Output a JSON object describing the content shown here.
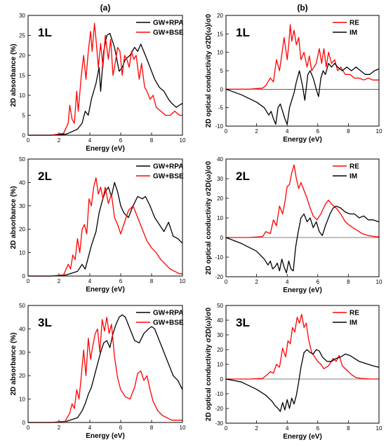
{
  "columns": [
    "(a)",
    "(b)"
  ],
  "colors": {
    "black": "#000000",
    "red": "#ff0000"
  },
  "chart_data": [
    {
      "type": "line",
      "panel_label": "1L",
      "xlabel": "Energy (eV)",
      "ylabel": "2D absorbance (%)",
      "xlim": [
        0,
        10
      ],
      "ylim": [
        0,
        30
      ],
      "xticks": [
        0,
        2,
        4,
        6,
        8,
        10
      ],
      "yticks": [
        0,
        5,
        10,
        15,
        20,
        25,
        30
      ],
      "legend": [
        "GW+RPA",
        "GW+BSE"
      ],
      "legend_position": "top-right",
      "series": [
        {
          "name": "GW+RPA",
          "color": "#000000",
          "x": [
            0,
            1.5,
            2.5,
            3.2,
            3.5,
            3.7,
            3.9,
            4.1,
            4.4,
            4.6,
            4.7,
            4.9,
            5.1,
            5.3,
            5.6,
            5.9,
            6.1,
            6.3,
            6.6,
            6.9,
            7.1,
            7.3,
            7.6,
            7.9,
            8.2,
            8.5,
            8.8,
            9.1,
            9.3,
            9.6,
            10
          ],
          "y": [
            0,
            0,
            0.3,
            1.5,
            3,
            6,
            5,
            9,
            13,
            17,
            11,
            21,
            25,
            25.5,
            22,
            16,
            17,
            19,
            20,
            22,
            21,
            22.8,
            20,
            17,
            14,
            12,
            11,
            9,
            8,
            7,
            8
          ]
        },
        {
          "name": "GW+BSE",
          "color": "#000000",
          "x": [
            0,
            1.5,
            2.3,
            2.6,
            2.7,
            2.85,
            3.0,
            3.15,
            3.25,
            3.45,
            3.6,
            3.75,
            3.9,
            4.05,
            4.15,
            4.3,
            4.4,
            4.55,
            4.7,
            4.85,
            5.0,
            5.2,
            5.35,
            5.5,
            5.6,
            5.8,
            5.95,
            6.1,
            6.25,
            6.4,
            6.55,
            6.7,
            6.85,
            7.0,
            7.2,
            7.35,
            7.55,
            7.7,
            7.9,
            8.1,
            8.3,
            8.6,
            8.9,
            9.2,
            9.5,
            9.8,
            10
          ],
          "y": [
            0,
            0,
            0.5,
            3,
            7.5,
            4,
            3,
            11,
            6,
            15,
            20,
            14,
            21,
            26,
            21,
            28,
            24,
            17,
            23,
            17,
            25,
            19,
            24,
            15,
            17,
            22,
            21,
            15,
            20,
            19,
            17,
            21,
            19,
            20,
            14,
            18,
            12,
            11,
            9,
            10,
            7,
            6,
            5,
            5,
            6,
            5,
            5
          ]
        }
      ]
    },
    {
      "type": "line",
      "panel_label": "1L",
      "xlabel": "Energy (eV)",
      "ylabel": "2D optical conductivity σ2D(ω)/σ0",
      "xlim": [
        0,
        10
      ],
      "ylim": [
        -10,
        20
      ],
      "xticks": [
        0,
        2,
        4,
        6,
        8,
        10
      ],
      "yticks": [
        -10,
        -5,
        0,
        5,
        10,
        15,
        20
      ],
      "legend": [
        "RE",
        "IM"
      ],
      "legend_position": "top-right",
      "series": [
        {
          "name": "RE",
          "color": "#ff0000",
          "x": [
            0,
            1.5,
            2.4,
            2.6,
            2.9,
            3.1,
            3.3,
            3.5,
            3.7,
            3.8,
            4.0,
            4.1,
            4.2,
            4.3,
            4.45,
            4.6,
            4.75,
            4.9,
            5.1,
            5.3,
            5.45,
            5.6,
            5.9,
            6.1,
            6.25,
            6.4,
            6.55,
            6.7,
            6.9,
            7.1,
            7.3,
            7.5,
            7.8,
            8.1,
            8.4,
            8.7,
            9.0,
            9.3,
            9.6,
            10
          ],
          "y": [
            0,
            0,
            0.3,
            1,
            3,
            2,
            8,
            5,
            11,
            14,
            8,
            12,
            17.5,
            13,
            16,
            12,
            14,
            8,
            10,
            6,
            9,
            5,
            7,
            11,
            7,
            11,
            6,
            10,
            7,
            8,
            5,
            6,
            4,
            4,
            3,
            3,
            2.5,
            3,
            2.5,
            2.5
          ]
        },
        {
          "name": "IM",
          "color": "#000000",
          "x": [
            0,
            1,
            2,
            2.5,
            2.8,
            2.95,
            3.1,
            3.25,
            3.4,
            3.55,
            3.7,
            3.85,
            4.0,
            4.15,
            4.3,
            4.45,
            4.6,
            4.8,
            5.0,
            5.15,
            5.35,
            5.5,
            5.7,
            5.9,
            6.05,
            6.2,
            6.35,
            6.5,
            6.7,
            6.9,
            7.1,
            7.3,
            7.6,
            7.9,
            8.2,
            8.5,
            8.8,
            9.1,
            9.4,
            9.7,
            10
          ],
          "y": [
            0,
            -1.5,
            -3.5,
            -5,
            -7,
            -6,
            -8,
            -9.5,
            -5,
            -4,
            -6,
            -8,
            -9.5,
            -5,
            -3,
            -1,
            2,
            5,
            1,
            -3,
            4,
            5,
            3,
            0,
            -2,
            3,
            5,
            4,
            7,
            6,
            7,
            6,
            5,
            6,
            5,
            6,
            5,
            4,
            4,
            5,
            5.5
          ]
        }
      ]
    },
    {
      "type": "line",
      "panel_label": "2L",
      "xlabel": "Energy (eV)",
      "ylabel": "2D absorbance (%)",
      "xlim": [
        0,
        10
      ],
      "ylim": [
        0,
        50
      ],
      "xticks": [
        0,
        2,
        4,
        6,
        8,
        10
      ],
      "yticks": [
        0,
        10,
        20,
        30,
        40,
        50
      ],
      "legend": [
        "GW+RPA",
        "GW+BSE"
      ],
      "legend_position": "top-right",
      "series": [
        {
          "name": "GW+RPA",
          "color": "#000000",
          "x": [
            0,
            1.5,
            2.5,
            3.2,
            3.5,
            3.7,
            3.9,
            4.1,
            4.4,
            4.6,
            4.8,
            5.0,
            5.2,
            5.4,
            5.6,
            5.8,
            6.0,
            6.2,
            6.5,
            6.8,
            7.1,
            7.4,
            7.6,
            7.9,
            8.2,
            8.5,
            8.8,
            9.1,
            9.4,
            9.7,
            10
          ],
          "y": [
            0,
            0,
            0.5,
            2,
            5,
            3,
            8,
            13,
            19,
            27,
            32,
            36,
            38,
            34,
            40,
            36,
            30,
            27,
            25,
            30,
            34,
            33,
            34,
            30,
            25,
            22,
            19,
            23,
            17,
            16,
            14
          ]
        },
        {
          "name": "GW+BSE",
          "color": "#000000",
          "x": [
            0,
            1.5,
            2.3,
            2.6,
            2.75,
            2.9,
            3.05,
            3.2,
            3.35,
            3.5,
            3.65,
            3.8,
            3.95,
            4.1,
            4.25,
            4.4,
            4.55,
            4.7,
            4.85,
            5.0,
            5.2,
            5.4,
            5.6,
            5.8,
            6.0,
            6.2,
            6.5,
            6.8,
            7.1,
            7.4,
            7.7,
            8.0,
            8.3,
            8.6,
            8.9,
            9.2,
            9.5,
            9.8,
            10
          ],
          "y": [
            0,
            0,
            0.5,
            5,
            3,
            9,
            7,
            16,
            10,
            20,
            22,
            18,
            33,
            30,
            38,
            42,
            35,
            38,
            33,
            38,
            31,
            35,
            25,
            22,
            18,
            22,
            28,
            30,
            25,
            20,
            15,
            12,
            10,
            7,
            5,
            3,
            2,
            1,
            1
          ]
        }
      ]
    },
    {
      "type": "line",
      "panel_label": "2L",
      "xlabel": "Energy (eV)",
      "ylabel": "2D optical conductivity σ2D(ω)/σ0",
      "xlim": [
        0,
        10
      ],
      "ylim": [
        -20,
        40
      ],
      "xticks": [
        0,
        2,
        4,
        6,
        8,
        10
      ],
      "yticks": [
        -20,
        -10,
        0,
        10,
        20,
        30,
        40
      ],
      "legend": [
        "RE",
        "IM"
      ],
      "legend_position": "top-right",
      "series": [
        {
          "name": "RE",
          "color": "#ff0000",
          "x": [
            0,
            1.5,
            2.4,
            2.6,
            2.9,
            3.1,
            3.3,
            3.5,
            3.7,
            3.85,
            4.0,
            4.15,
            4.3,
            4.45,
            4.6,
            4.75,
            4.9,
            5.1,
            5.3,
            5.5,
            5.7,
            5.95,
            6.2,
            6.5,
            6.7,
            6.9,
            7.2,
            7.5,
            7.8,
            8.1,
            8.5,
            8.9,
            9.3,
            9.7,
            10
          ],
          "y": [
            0,
            0,
            0.5,
            3,
            2,
            9,
            6,
            16,
            12,
            18,
            26,
            27,
            33,
            37,
            30,
            25,
            28,
            24,
            20,
            15,
            11,
            9,
            12,
            17,
            19,
            17,
            15,
            12,
            8,
            6,
            4,
            2,
            1,
            0.5,
            0.3
          ]
        },
        {
          "name": "IM",
          "color": "#000000",
          "x": [
            0,
            1,
            2,
            2.5,
            2.75,
            2.9,
            3.05,
            3.2,
            3.35,
            3.5,
            3.65,
            3.8,
            3.95,
            4.1,
            4.25,
            4.4,
            4.55,
            4.7,
            4.9,
            5.1,
            5.3,
            5.5,
            5.7,
            5.9,
            6.1,
            6.3,
            6.5,
            6.8,
            7.0,
            7.2,
            7.5,
            7.8,
            8.1,
            8.4,
            8.7,
            9.0,
            9.3,
            9.6,
            10
          ],
          "y": [
            0,
            -3,
            -7,
            -11,
            -14,
            -12,
            -16,
            -15,
            -13,
            -17,
            -11,
            -15,
            -18,
            -12,
            -16,
            -17,
            -5,
            2,
            10,
            12,
            8,
            10,
            5,
            8,
            3,
            1,
            6,
            12,
            15,
            16,
            15,
            13,
            12,
            12,
            10,
            11,
            9,
            9,
            8
          ]
        }
      ]
    },
    {
      "type": "line",
      "panel_label": "3L",
      "xlabel": "Energy (eV)",
      "ylabel": "2D absorbance (%)",
      "xlim": [
        0,
        10
      ],
      "ylim": [
        0,
        50
      ],
      "xticks": [
        0,
        2,
        4,
        6,
        8,
        10
      ],
      "yticks": [
        0,
        10,
        20,
        30,
        40,
        50
      ],
      "legend": [
        "GW+RPA",
        "GW+BSE"
      ],
      "legend_position": "top-right",
      "series": [
        {
          "name": "GW+RPA",
          "color": "#000000",
          "x": [
            0,
            1.5,
            2.5,
            3.2,
            3.5,
            3.7,
            3.9,
            4.1,
            4.3,
            4.5,
            4.7,
            4.9,
            5.1,
            5.3,
            5.5,
            5.7,
            5.9,
            6.1,
            6.3,
            6.6,
            6.9,
            7.2,
            7.5,
            7.8,
            8.0,
            8.2,
            8.5,
            8.8,
            9.1,
            9.4,
            9.7,
            10
          ],
          "y": [
            0,
            0,
            0.5,
            2,
            5,
            8,
            12,
            15,
            20,
            25,
            30,
            34,
            35,
            32,
            38,
            42,
            45,
            46,
            45,
            40,
            35,
            34,
            38,
            40,
            41,
            40,
            35,
            30,
            25,
            20,
            18,
            14
          ]
        },
        {
          "name": "GW+BSE",
          "color": "#000000",
          "x": [
            0,
            1.5,
            2.4,
            2.7,
            2.85,
            3.0,
            3.15,
            3.3,
            3.45,
            3.6,
            3.75,
            3.9,
            4.05,
            4.2,
            4.35,
            4.5,
            4.65,
            4.8,
            4.95,
            5.1,
            5.25,
            5.4,
            5.6,
            5.8,
            6.0,
            6.3,
            6.6,
            6.9,
            7.1,
            7.3,
            7.5,
            7.7,
            7.9,
            8.1,
            8.4,
            8.7,
            9.0,
            9.3,
            9.6,
            10
          ],
          "y": [
            0,
            0,
            0.5,
            4,
            8,
            6,
            14,
            10,
            20,
            31,
            20,
            36,
            27,
            33,
            38,
            40,
            30,
            44,
            39,
            45,
            38,
            42,
            28,
            19,
            14,
            11,
            10,
            15,
            21,
            22,
            18,
            20,
            14,
            9,
            5,
            3,
            2,
            1,
            1,
            1
          ]
        }
      ]
    },
    {
      "type": "line",
      "panel_label": "3L",
      "xlabel": "Energy (eV)",
      "ylabel": "2D optical conductivity σ2D(ω)/σ0",
      "xlim": [
        0,
        10
      ],
      "ylim": [
        -30,
        50
      ],
      "xticks": [
        0,
        2,
        4,
        6,
        8,
        10
      ],
      "yticks": [
        -30,
        -20,
        -10,
        0,
        10,
        20,
        30,
        40,
        50
      ],
      "legend": [
        "RE",
        "IM"
      ],
      "legend_position": "top-right",
      "series": [
        {
          "name": "RE",
          "color": "#ff0000",
          "x": [
            0,
            1.5,
            2.4,
            2.7,
            2.9,
            3.1,
            3.3,
            3.5,
            3.7,
            3.9,
            4.05,
            4.2,
            4.35,
            4.5,
            4.65,
            4.8,
            4.95,
            5.1,
            5.25,
            5.4,
            5.6,
            5.8,
            6.0,
            6.2,
            6.4,
            6.7,
            7.0,
            7.2,
            7.4,
            7.6,
            7.9,
            8.2,
            8.5,
            8.8,
            9.1,
            9.5,
            10
          ],
          "y": [
            0,
            0,
            0.5,
            3,
            5,
            4,
            10,
            8,
            21,
            15,
            26,
            24,
            35,
            32,
            42,
            38,
            44,
            35,
            38,
            27,
            18,
            15,
            12,
            10,
            7,
            9,
            14,
            12,
            16,
            9,
            6,
            3,
            1,
            0.5,
            0.3,
            0,
            0
          ]
        },
        {
          "name": "IM",
          "color": "#000000",
          "x": [
            0,
            1,
            2,
            2.6,
            3.0,
            3.2,
            3.4,
            3.55,
            3.7,
            3.85,
            4.0,
            4.15,
            4.3,
            4.45,
            4.6,
            4.75,
            4.9,
            5.1,
            5.3,
            5.5,
            5.7,
            5.9,
            6.1,
            6.3,
            6.6,
            6.9,
            7.2,
            7.5,
            7.8,
            8.1,
            8.4,
            8.7,
            9.0,
            9.3,
            9.6,
            10
          ],
          "y": [
            0,
            -2,
            -7,
            -11,
            -15,
            -18,
            -20,
            -22,
            -16,
            -21,
            -14,
            -20,
            -13,
            -17,
            -11,
            -2,
            8,
            18,
            20,
            18,
            17,
            20,
            19,
            15,
            12,
            12,
            14,
            15,
            17,
            16,
            14,
            12,
            11,
            10,
            9,
            8
          ]
        }
      ]
    }
  ]
}
